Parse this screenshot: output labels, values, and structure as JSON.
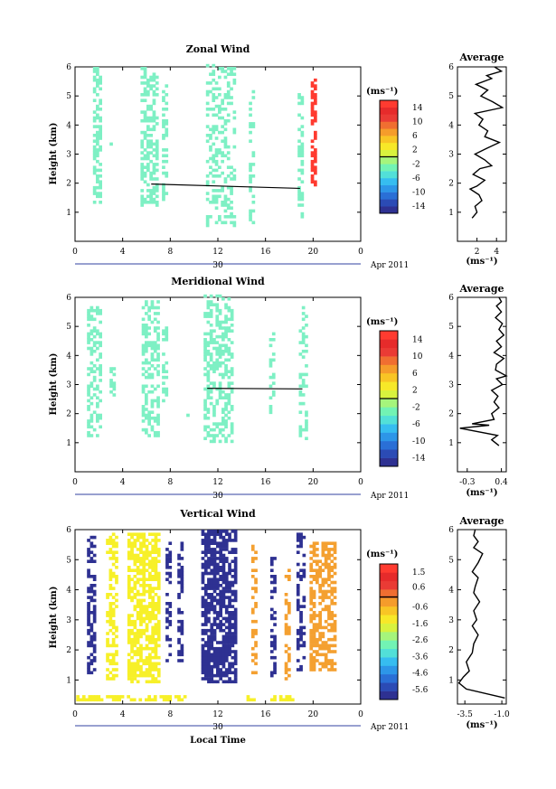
{
  "chart_data": [
    {
      "type": "heatmap",
      "title": "Zonal Wind",
      "ylabel": "Height (km)",
      "xticks": [
        "0",
        "4",
        "8",
        "12",
        "16",
        "20",
        "0"
      ],
      "xlim": [
        0,
        24
      ],
      "yticks": [
        "1",
        "2",
        "3",
        "4",
        "5",
        "6"
      ],
      "ylim": [
        0,
        6
      ],
      "date_label": "30",
      "month_label": "Apr 2011",
      "colorbar": {
        "unit": "(ms⁻¹)",
        "ticks": [
          "14",
          "10",
          "6",
          "2",
          "-2",
          "-6",
          "-10",
          "-14"
        ],
        "range": [
          -16,
          16
        ],
        "colors": [
          "#2e3192",
          "#2b4bb5",
          "#2a6fd6",
          "#2d96e8",
          "#36bdf0",
          "#52e0d8",
          "#72f3b4",
          "#a5f57c",
          "#d8f23e",
          "#f7e828",
          "#f8c525",
          "#f59c2b",
          "#f06e31",
          "#ea3b35",
          "#e62b2b",
          "#ff3b30"
        ]
      },
      "clusters": [
        {
          "t_range": [
            1.5,
            2.0
          ],
          "h_range": [
            1.3,
            5.9
          ],
          "color": "#7ef0c4",
          "density": 0.55
        },
        {
          "t_range": [
            2.9,
            3.2
          ],
          "h_range": [
            2.9,
            3.4
          ],
          "color": "#7ef0c4",
          "density": 0.45
        },
        {
          "t_range": [
            5.5,
            6.8
          ],
          "h_range": [
            1.2,
            5.9
          ],
          "color": "#7ef0c4",
          "density": 0.5
        },
        {
          "t_range": [
            7.3,
            7.6
          ],
          "h_range": [
            1.2,
            5.3
          ],
          "color": "#7ef0c4",
          "density": 0.35
        },
        {
          "t_range": [
            11.0,
            13.4
          ],
          "h_range": [
            0.5,
            6.0
          ],
          "color": "#7ef0c4",
          "density": 0.35
        },
        {
          "t_range": [
            14.6,
            15.0
          ],
          "h_range": [
            0.6,
            5.3
          ],
          "color": "#7ef0c4",
          "density": 0.35
        },
        {
          "t_range": [
            18.7,
            19.0
          ],
          "h_range": [
            0.8,
            5.2
          ],
          "color": "#7ef0c4",
          "density": 0.45
        },
        {
          "t_range": [
            19.8,
            20.2
          ],
          "h_range": [
            1.8,
            5.7
          ],
          "color": "#ff3b30",
          "density": 0.6
        }
      ],
      "line": [
        [
          6.4,
          1.97
        ],
        [
          18.9,
          1.82
        ]
      ]
    },
    {
      "type": "line",
      "title": "Average",
      "xlabel": "(ms⁻¹)",
      "xticks": [
        "2",
        "4"
      ],
      "xlim": [
        0,
        5
      ],
      "yticks": [
        "1",
        "2",
        "3",
        "4",
        "5",
        "6"
      ],
      "ylim": [
        0,
        6
      ],
      "points": [
        [
          1.5,
          0.8
        ],
        [
          2.0,
          1.0
        ],
        [
          1.8,
          1.2
        ],
        [
          2.5,
          1.4
        ],
        [
          2.2,
          1.6
        ],
        [
          1.3,
          1.8
        ],
        [
          2.0,
          1.9
        ],
        [
          2.8,
          2.1
        ],
        [
          1.6,
          2.3
        ],
        [
          2.3,
          2.5
        ],
        [
          3.5,
          2.6
        ],
        [
          2.8,
          2.8
        ],
        [
          1.8,
          3.0
        ],
        [
          3.0,
          3.2
        ],
        [
          4.3,
          3.4
        ],
        [
          2.8,
          3.6
        ],
        [
          3.1,
          3.8
        ],
        [
          2.2,
          4.0
        ],
        [
          2.6,
          4.2
        ],
        [
          1.8,
          4.4
        ],
        [
          4.6,
          4.6
        ],
        [
          3.6,
          4.8
        ],
        [
          2.4,
          5.0
        ],
        [
          3.1,
          5.2
        ],
        [
          1.9,
          5.4
        ],
        [
          3.5,
          5.6
        ],
        [
          3.0,
          5.7
        ],
        [
          4.5,
          5.85
        ],
        [
          3.8,
          6.0
        ]
      ]
    },
    {
      "type": "heatmap",
      "title": "Meridional Wind",
      "ylabel": "Height (km)",
      "xticks": [
        "0",
        "4",
        "8",
        "12",
        "16",
        "20",
        "0"
      ],
      "xlim": [
        0,
        24
      ],
      "yticks": [
        "1",
        "2",
        "3",
        "4",
        "5",
        "6"
      ],
      "ylim": [
        0,
        6
      ],
      "date_label": "30",
      "month_label": "Apr 2011",
      "colorbar": {
        "unit": "(ms⁻¹)",
        "ticks": [
          "14",
          "10",
          "6",
          "2",
          "-2",
          "-6",
          "-10",
          "-14"
        ],
        "range": [
          -16,
          16
        ],
        "colors": [
          "#2e3192",
          "#2b4bb5",
          "#2a6fd6",
          "#2d96e8",
          "#36bdf0",
          "#52e0d8",
          "#72f3b4",
          "#a5f57c",
          "#d8f23e",
          "#f7e828",
          "#f8c525",
          "#f59c2b",
          "#f06e31",
          "#ea3b35",
          "#e62b2b",
          "#ff3b30"
        ]
      },
      "clusters": [
        {
          "t_range": [
            1.0,
            2.0
          ],
          "h_range": [
            1.2,
            5.6
          ],
          "color": "#7ef0c4",
          "density": 0.45
        },
        {
          "t_range": [
            2.9,
            3.2
          ],
          "h_range": [
            2.6,
            3.5
          ],
          "color": "#7ef0c4",
          "density": 0.45
        },
        {
          "t_range": [
            5.6,
            6.9
          ],
          "h_range": [
            1.2,
            5.8
          ],
          "color": "#7ef0c4",
          "density": 0.5
        },
        {
          "t_range": [
            7.3,
            7.6
          ],
          "h_range": [
            1.4,
            4.9
          ],
          "color": "#7ef0c4",
          "density": 0.3
        },
        {
          "t_range": [
            9.1,
            9.4
          ],
          "h_range": [
            1.7,
            2.0
          ],
          "color": "#7ef0c4",
          "density": 0.4
        },
        {
          "t_range": [
            10.8,
            13.2
          ],
          "h_range": [
            1.0,
            6.0
          ],
          "color": "#7ef0c4",
          "density": 0.45
        },
        {
          "t_range": [
            16.3,
            16.7
          ],
          "h_range": [
            1.9,
            4.7
          ],
          "color": "#7ef0c4",
          "density": 0.3
        },
        {
          "t_range": [
            18.8,
            19.3
          ],
          "h_range": [
            1.1,
            5.6
          ],
          "color": "#7ef0c4",
          "density": 0.4
        }
      ],
      "line": [
        [
          11.1,
          2.87
        ],
        [
          19.1,
          2.85
        ]
      ]
    },
    {
      "type": "line",
      "title": "Average",
      "xlabel": "(ms⁻¹)",
      "xticks": [
        "-0.3",
        "0.4"
      ],
      "xlim": [
        -0.5,
        0.5
      ],
      "yticks": [
        "1",
        "2",
        "3",
        "4",
        "5",
        "6"
      ],
      "ylim": [
        0,
        6
      ],
      "points": [
        [
          0.35,
          0.9
        ],
        [
          0.2,
          1.1
        ],
        [
          0.32,
          1.25
        ],
        [
          -0.45,
          1.5
        ],
        [
          0.15,
          1.6
        ],
        [
          -0.2,
          1.65
        ],
        [
          0.25,
          1.8
        ],
        [
          0.2,
          2.0
        ],
        [
          0.35,
          2.2
        ],
        [
          0.25,
          2.4
        ],
        [
          0.33,
          2.6
        ],
        [
          0.2,
          2.8
        ],
        [
          0.42,
          3.0
        ],
        [
          0.3,
          3.2
        ],
        [
          0.5,
          3.3
        ],
        [
          0.28,
          3.5
        ],
        [
          0.3,
          3.7
        ],
        [
          0.45,
          3.9
        ],
        [
          0.25,
          4.1
        ],
        [
          0.4,
          4.3
        ],
        [
          0.3,
          4.5
        ],
        [
          0.45,
          4.7
        ],
        [
          0.35,
          4.9
        ],
        [
          0.42,
          5.1
        ],
        [
          0.28,
          5.3
        ],
        [
          0.4,
          5.5
        ],
        [
          0.3,
          5.7
        ],
        [
          0.4,
          5.85
        ],
        [
          0.35,
          6.0
        ]
      ]
    },
    {
      "type": "heatmap",
      "title": "Vertical Wind",
      "xlabel": "Local Time",
      "ylabel": "Height (km)",
      "xticks": [
        "0",
        "4",
        "8",
        "12",
        "16",
        "20",
        "0"
      ],
      "xlim": [
        0,
        24
      ],
      "yticks": [
        "1",
        "2",
        "3",
        "4",
        "5",
        "6"
      ],
      "ylim": [
        0.2,
        6
      ],
      "date_label": "30",
      "month_label": "Apr 2011",
      "colorbar": {
        "unit": "(ms⁻¹)",
        "ticks": [
          "1.5",
          "0.6",
          "-0.6",
          "-1.6",
          "-2.6",
          "-3.6",
          "-4.6",
          "-5.6"
        ],
        "range": [
          -6.2,
          2.0
        ],
        "colors": [
          "#2e3192",
          "#2b4bb5",
          "#2a6fd6",
          "#2d96e8",
          "#36bdf0",
          "#52e0d8",
          "#72f3b4",
          "#a5f57c",
          "#d8f23e",
          "#f7e828",
          "#f8c525",
          "#f59c2b",
          "#f06e31",
          "#ea3b35",
          "#e62b2b",
          "#ff3b30"
        ]
      },
      "clusters": [
        {
          "t_range": [
            1.0,
            1.7
          ],
          "h_range": [
            1.2,
            5.8
          ],
          "color": "#2e3192",
          "density": 0.6
        },
        {
          "t_range": [
            2.6,
            3.4
          ],
          "h_range": [
            1.0,
            5.8
          ],
          "color": "#f7f029",
          "density": 0.5
        },
        {
          "t_range": [
            4.4,
            7.0
          ],
          "h_range": [
            0.9,
            5.8
          ],
          "color": "#f7f029",
          "density": 0.7
        },
        {
          "t_range": [
            7.6,
            7.9
          ],
          "h_range": [
            1.5,
            5.5
          ],
          "color": "#2e3192",
          "density": 0.5
        },
        {
          "t_range": [
            8.6,
            8.9
          ],
          "h_range": [
            1.6,
            5.5
          ],
          "color": "#2e3192",
          "density": 0.6
        },
        {
          "t_range": [
            10.6,
            13.4
          ],
          "h_range": [
            0.9,
            5.9
          ],
          "color": "#2e3192",
          "density": 0.75
        },
        {
          "t_range": [
            14.8,
            15.2
          ],
          "h_range": [
            1.0,
            5.4
          ],
          "color": "#f4a030",
          "density": 0.4
        },
        {
          "t_range": [
            16.4,
            16.8
          ],
          "h_range": [
            1.0,
            5.0
          ],
          "color": "#2e3192",
          "density": 0.5
        },
        {
          "t_range": [
            17.6,
            18.0
          ],
          "h_range": [
            1.0,
            4.7
          ],
          "color": "#f4a030",
          "density": 0.4
        },
        {
          "t_range": [
            18.6,
            19.2
          ],
          "h_range": [
            1.3,
            5.8
          ],
          "color": "#2e3192",
          "density": 0.45
        },
        {
          "t_range": [
            19.7,
            21.7
          ],
          "h_range": [
            1.3,
            5.5
          ],
          "color": "#f4a030",
          "density": 0.55
        },
        {
          "t_range": [
            0.1,
            9.3
          ],
          "h_range": [
            0.3,
            0.45
          ],
          "color": "#f7f029",
          "density": 0.55
        },
        {
          "t_range": [
            14.4,
            18.2
          ],
          "h_range": [
            0.3,
            0.45
          ],
          "color": "#f7f029",
          "density": 0.5
        }
      ]
    },
    {
      "type": "line",
      "title": "Average",
      "xlabel": "(ms⁻¹)",
      "xticks": [
        "-3.5",
        "-1.0"
      ],
      "xlim": [
        -4.0,
        -0.7
      ],
      "yticks": [
        "1",
        "2",
        "3",
        "4",
        "5",
        "6"
      ],
      "ylim": [
        0.2,
        6
      ],
      "points": [
        [
          -0.8,
          0.4
        ],
        [
          -3.4,
          0.7
        ],
        [
          -3.9,
          0.9
        ],
        [
          -3.6,
          1.1
        ],
        [
          -3.2,
          1.3
        ],
        [
          -3.4,
          1.6
        ],
        [
          -3.0,
          1.9
        ],
        [
          -2.9,
          2.2
        ],
        [
          -2.6,
          2.5
        ],
        [
          -3.0,
          2.8
        ],
        [
          -2.7,
          3.0
        ],
        [
          -2.9,
          3.3
        ],
        [
          -2.5,
          3.6
        ],
        [
          -2.9,
          3.9
        ],
        [
          -2.8,
          4.1
        ],
        [
          -2.6,
          4.4
        ],
        [
          -3.0,
          4.6
        ],
        [
          -2.6,
          4.9
        ],
        [
          -2.3,
          5.2
        ],
        [
          -2.9,
          5.4
        ],
        [
          -2.6,
          5.6
        ],
        [
          -2.9,
          5.8
        ],
        [
          -2.8,
          6.0
        ]
      ]
    }
  ]
}
